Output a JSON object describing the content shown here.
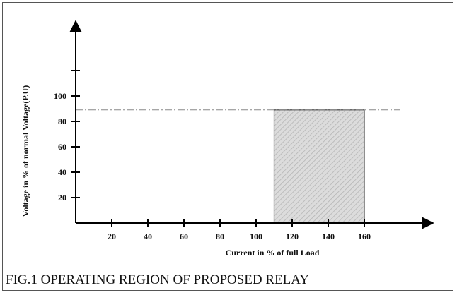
{
  "figure": {
    "caption": "FIG.1 OPERATING REGION OF PROPOSED RELAY"
  },
  "chart_data": {
    "type": "area",
    "title": "",
    "xlabel": "Current in % of full Load",
    "ylabel": "Voltage in % of normal Voltage(P.U)",
    "x_ticks": [
      20,
      40,
      60,
      80,
      100,
      120,
      140,
      160
    ],
    "y_ticks": [
      20,
      40,
      60,
      80,
      100
    ],
    "threshold_line": {
      "y": 89,
      "style": "dash-dot"
    },
    "operating_region": {
      "x_start": 110,
      "x_end": 160,
      "y_start": 0,
      "y_end": 89,
      "fill": "hatched-gray"
    },
    "colors": {
      "region_fill": "#dcdcdc",
      "region_edge": "#444444",
      "hatch": "#b5b5b5",
      "threshold": "#888888",
      "axis": "#000000"
    }
  }
}
